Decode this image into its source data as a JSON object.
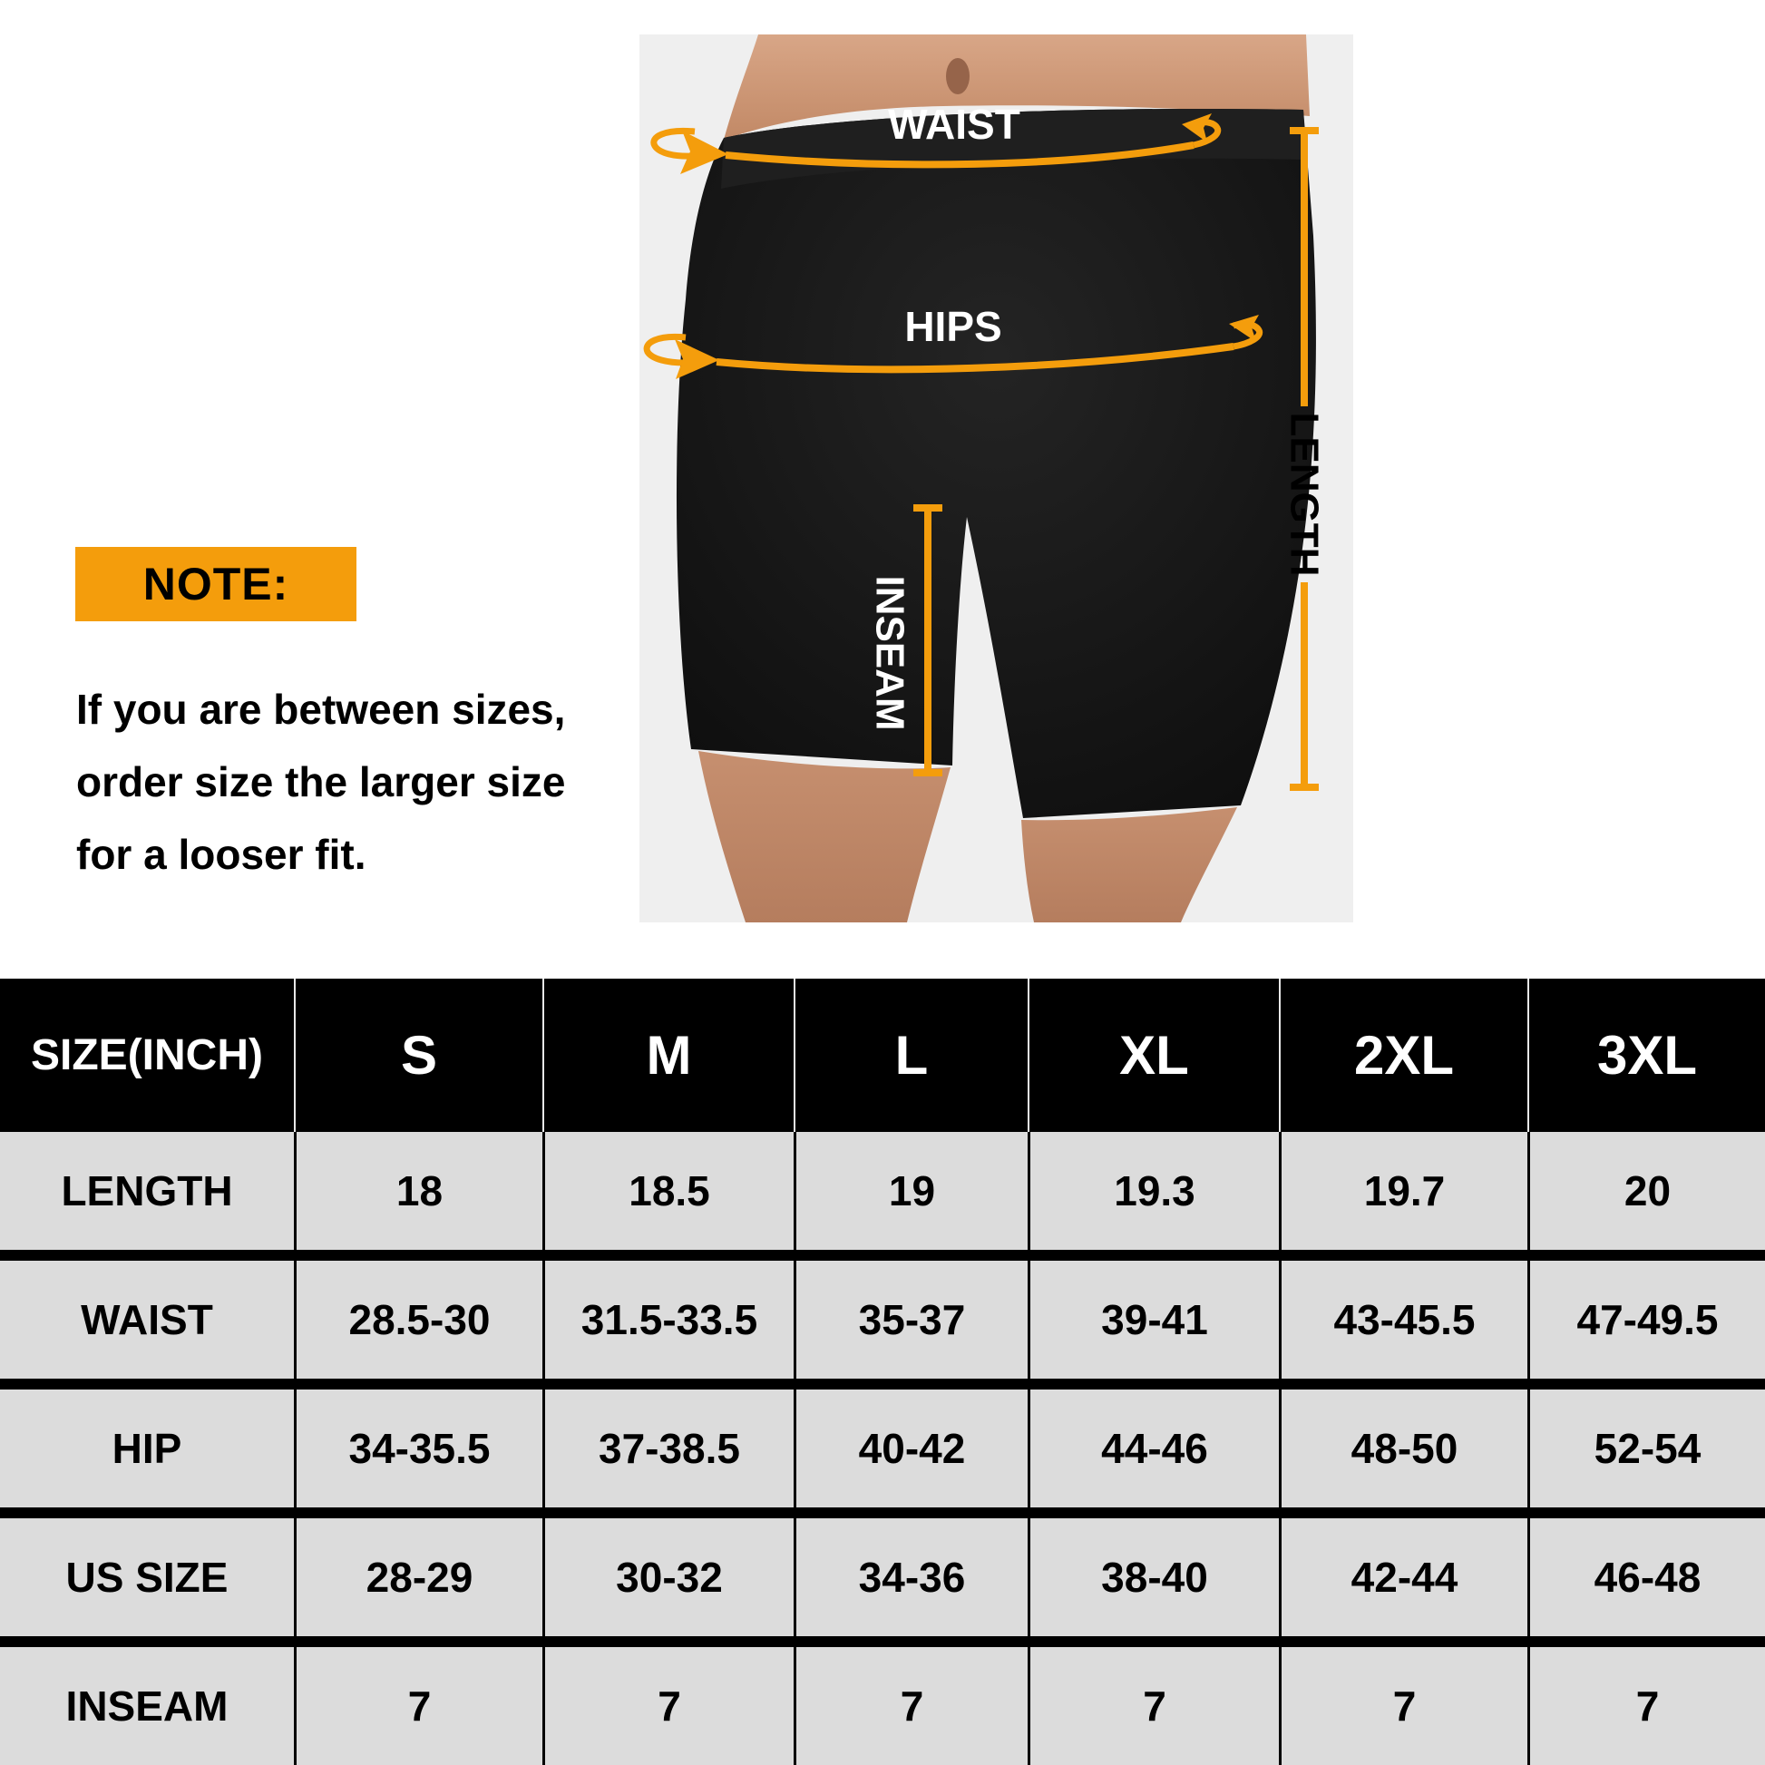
{
  "colors": {
    "accent_orange": "#F49D0C",
    "photo_background": "#EFEFEF",
    "table_header_bg": "#000000",
    "table_header_text": "#FFFFFF",
    "table_cell_bg": "#DCDCDC",
    "table_cell_text": "#000000"
  },
  "diagram": {
    "waist_label": "WAIST",
    "hips_label": "HIPS",
    "length_label": "LENGTH",
    "inseam_label": "INSEAM"
  },
  "note": {
    "title": "NOTE:",
    "lines": [
      "If you are between sizes,",
      "order size the larger size",
      "for a looser fit."
    ]
  },
  "table": {
    "columns": [
      "SIZE(INCH)",
      "S",
      "M",
      "L",
      "XL",
      "2XL",
      "3XL"
    ],
    "rows": [
      {
        "label": "LENGTH",
        "values": [
          "18",
          "18.5",
          "19",
          "19.3",
          "19.7",
          "20"
        ]
      },
      {
        "label": "WAIST",
        "values": [
          "28.5-30",
          "31.5-33.5",
          "35-37",
          "39-41",
          "43-45.5",
          "47-49.5"
        ]
      },
      {
        "label": "HIP",
        "values": [
          "34-35.5",
          "37-38.5",
          "40-42",
          "44-46",
          "48-50",
          "52-54"
        ]
      },
      {
        "label": "US SIZE",
        "values": [
          "28-29",
          "30-32",
          "34-36",
          "38-40",
          "42-44",
          "46-48"
        ]
      },
      {
        "label": "INSEAM",
        "values": [
          "7",
          "7",
          "7",
          "7",
          "7",
          "7"
        ]
      }
    ]
  }
}
